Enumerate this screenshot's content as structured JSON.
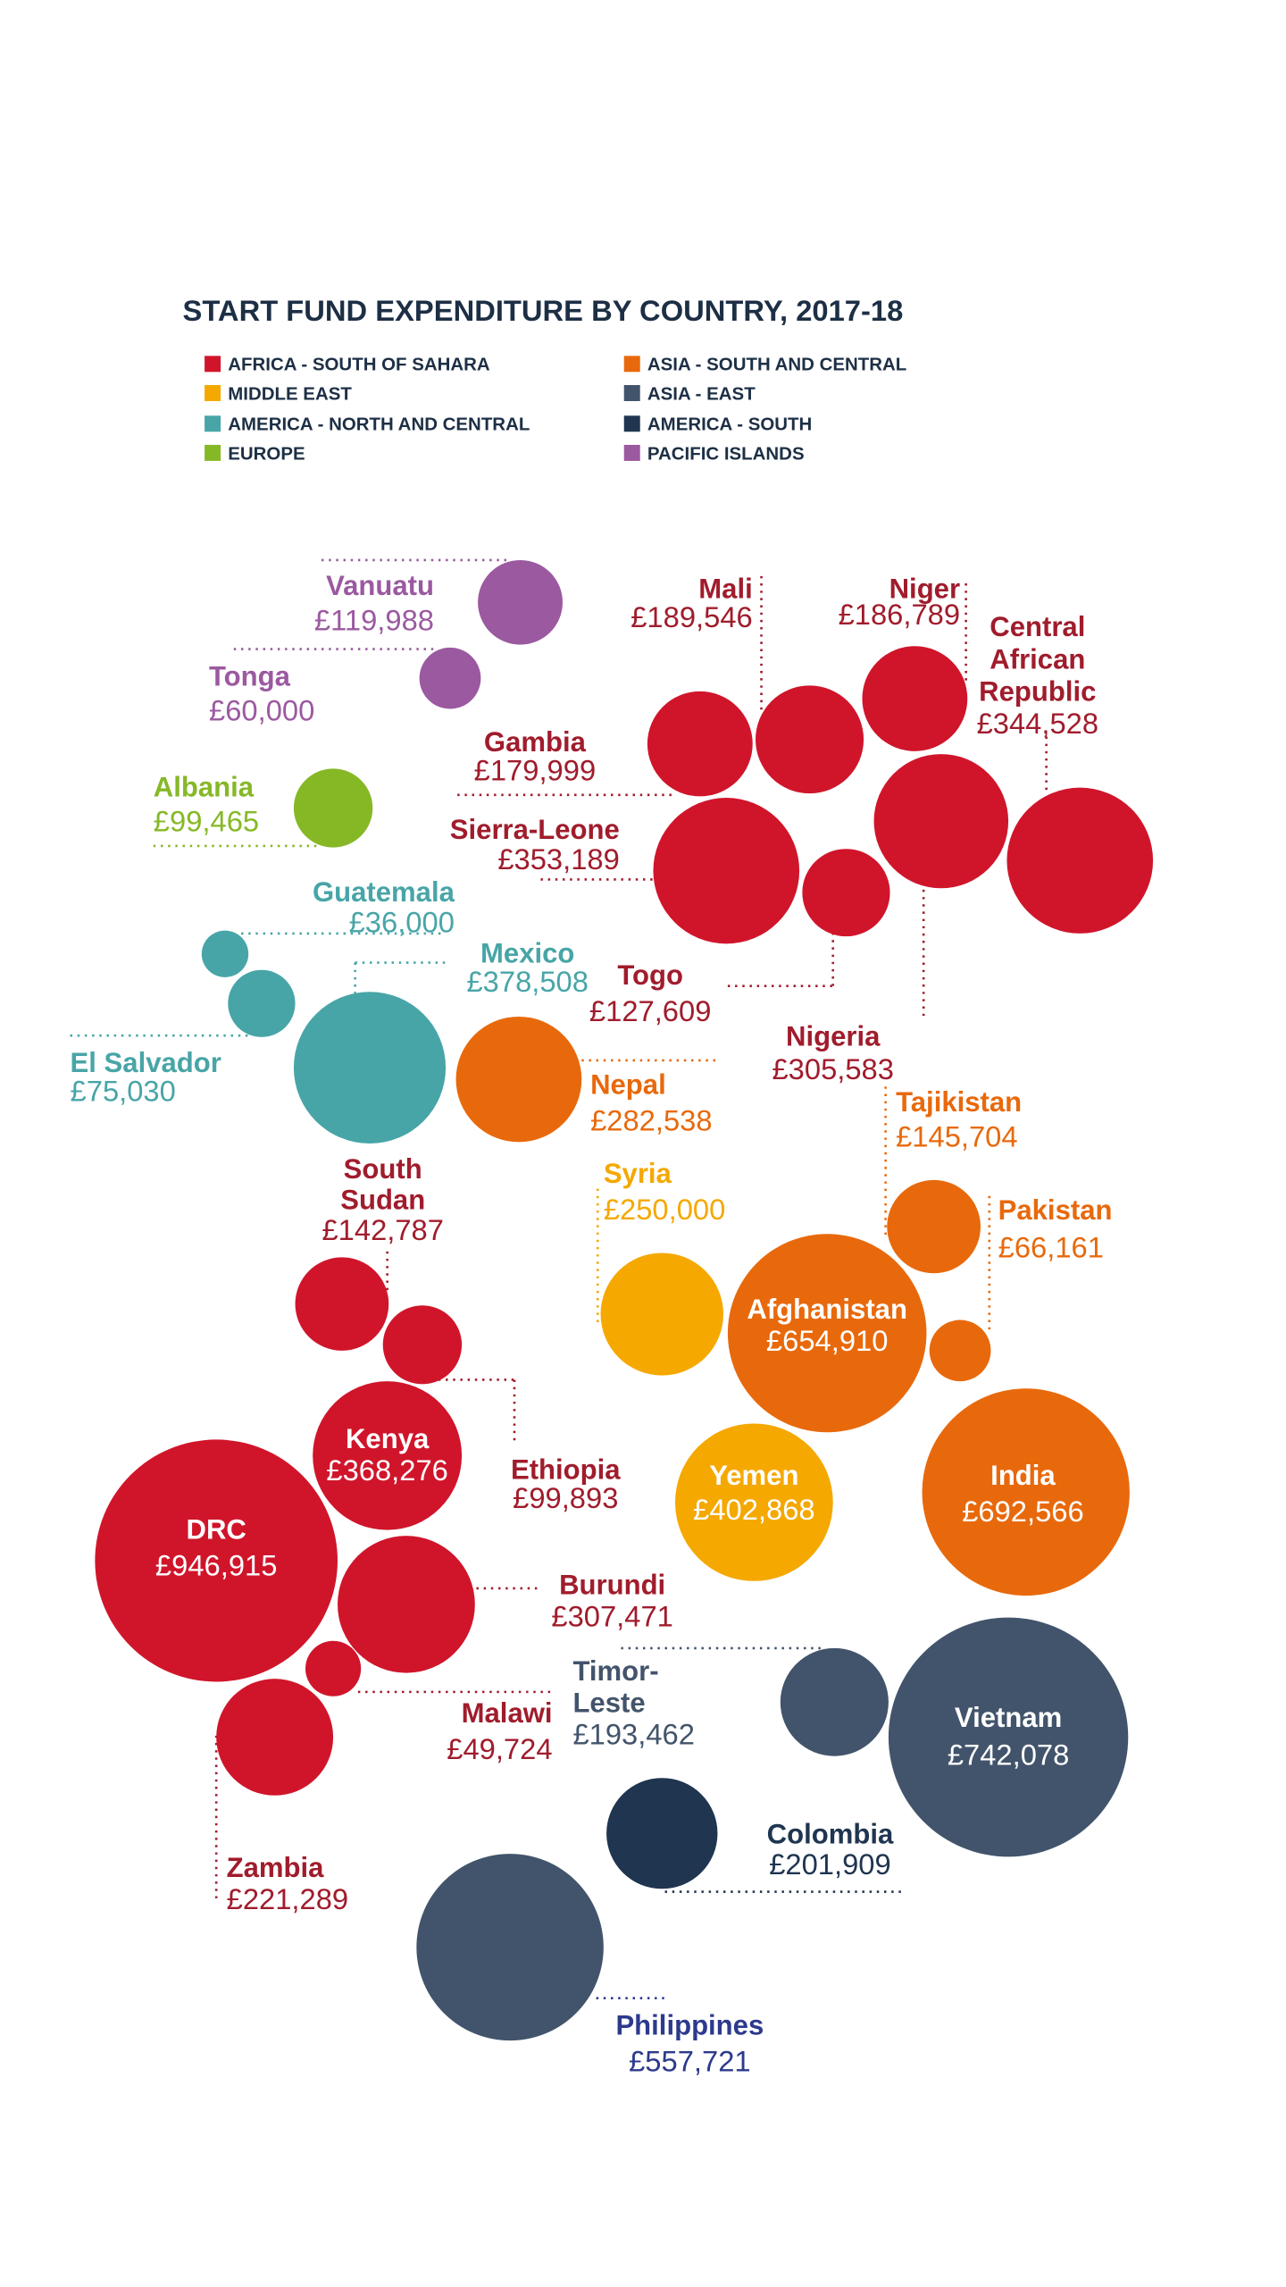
{
  "chart_data": {
    "type": "bubble",
    "title": "START FUND EXPENDITURE BY COUNTRY, 2017-18",
    "currency": "GBP",
    "legend": [
      {
        "label": "AFRICA - SOUTH OF SAHARA",
        "color": "#d0152b"
      },
      {
        "label": "MIDDLE EAST",
        "color": "#f5a800"
      },
      {
        "label": "AMERICA - NORTH AND CENTRAL",
        "color": "#48a5a7"
      },
      {
        "label": "EUROPE",
        "color": "#86b826"
      },
      {
        "label": "ASIA - SOUTH AND CENTRAL",
        "color": "#e8690c"
      },
      {
        "label": "ASIA - EAST",
        "color": "#42546b"
      },
      {
        "label": "AMERICA - SOUTH",
        "color": "#1f3550"
      },
      {
        "label": "PACIFIC ISLANDS",
        "color": "#9b59a0"
      }
    ],
    "points": [
      {
        "name": "Vanuatu",
        "name_lines": [
          "Vanuatu"
        ],
        "value": 119988,
        "value_label": "£119,988",
        "region": "PACIFIC ISLANDS"
      },
      {
        "name": "Tonga",
        "name_lines": [
          "Tonga"
        ],
        "value": 60000,
        "value_label": "£60,000",
        "region": "PACIFIC ISLANDS"
      },
      {
        "name": "Albania",
        "name_lines": [
          "Albania"
        ],
        "value": 99465,
        "value_label": "£99,465",
        "region": "EUROPE"
      },
      {
        "name": "Gambia",
        "name_lines": [
          "Gambia"
        ],
        "value": 179999,
        "value_label": "£179,999",
        "region": "AFRICA - SOUTH OF SAHARA"
      },
      {
        "name": "Mali",
        "name_lines": [
          "Mali"
        ],
        "value": 189546,
        "value_label": "£189,546",
        "region": "AFRICA - SOUTH OF SAHARA"
      },
      {
        "name": "Niger",
        "name_lines": [
          "Niger"
        ],
        "value": 186789,
        "value_label": "£186,789",
        "region": "AFRICA - SOUTH OF SAHARA"
      },
      {
        "name": "Central African Republic",
        "name_lines": [
          "Central",
          "African",
          "Republic"
        ],
        "value": 344528,
        "value_label": "£344,528",
        "region": "AFRICA - SOUTH OF SAHARA"
      },
      {
        "name": "Sierra-Leone",
        "name_lines": [
          "Sierra-Leone"
        ],
        "value": 353189,
        "value_label": "£353,189",
        "region": "AFRICA - SOUTH OF SAHARA"
      },
      {
        "name": "Togo",
        "name_lines": [
          "Togo"
        ],
        "value": 127609,
        "value_label": "£127,609",
        "region": "AFRICA - SOUTH OF SAHARA"
      },
      {
        "name": "Nigeria",
        "name_lines": [
          "Nigeria"
        ],
        "value": 305583,
        "value_label": "£305,583",
        "region": "AFRICA - SOUTH OF SAHARA"
      },
      {
        "name": "Guatemala",
        "name_lines": [
          "Guatemala"
        ],
        "value": 36000,
        "value_label": "£36,000",
        "region": "AMERICA - NORTH AND CENTRAL"
      },
      {
        "name": "El Salvador",
        "name_lines": [
          "El Salvador"
        ],
        "value": 75030,
        "value_label": "£75,030",
        "region": "AMERICA - NORTH AND CENTRAL"
      },
      {
        "name": "Mexico",
        "name_lines": [
          "Mexico"
        ],
        "value": 378508,
        "value_label": "£378,508",
        "region": "AMERICA - NORTH AND CENTRAL"
      },
      {
        "name": "Nepal",
        "name_lines": [
          "Nepal"
        ],
        "value": 282538,
        "value_label": "£282,538",
        "region": "ASIA - SOUTH AND CENTRAL"
      },
      {
        "name": "Tajikistan",
        "name_lines": [
          "Tajikistan"
        ],
        "value": 145704,
        "value_label": "£145,704",
        "region": "ASIA - SOUTH AND CENTRAL"
      },
      {
        "name": "Pakistan",
        "name_lines": [
          "Pakistan"
        ],
        "value": 66161,
        "value_label": "£66,161",
        "region": "ASIA - SOUTH AND CENTRAL"
      },
      {
        "name": "Afghanistan",
        "name_lines": [
          "Afghanistan"
        ],
        "value": 654910,
        "value_label": "£654,910",
        "region": "ASIA - SOUTH AND CENTRAL"
      },
      {
        "name": "Syria",
        "name_lines": [
          "Syria"
        ],
        "value": 250000,
        "value_label": "£250,000",
        "region": "MIDDLE EAST"
      },
      {
        "name": "Yemen",
        "name_lines": [
          "Yemen"
        ],
        "value": 402868,
        "value_label": "£402,868",
        "region": "MIDDLE EAST"
      },
      {
        "name": "India",
        "name_lines": [
          "India"
        ],
        "value": 692566,
        "value_label": "£692,566",
        "region": "ASIA - SOUTH AND CENTRAL"
      },
      {
        "name": "South Sudan",
        "name_lines": [
          "South",
          "Sudan"
        ],
        "value": 142787,
        "value_label": "£142,787",
        "region": "AFRICA - SOUTH OF SAHARA"
      },
      {
        "name": "Ethiopia",
        "name_lines": [
          "Ethiopia"
        ],
        "value": 99893,
        "value_label": "£99,893",
        "region": "AFRICA - SOUTH OF SAHARA"
      },
      {
        "name": "Kenya",
        "name_lines": [
          "Kenya"
        ],
        "value": 368276,
        "value_label": "£368,276",
        "region": "AFRICA - SOUTH OF SAHARA"
      },
      {
        "name": "DRC",
        "name_lines": [
          "DRC"
        ],
        "value": 946915,
        "value_label": "£946,915",
        "region": "AFRICA - SOUTH OF SAHARA"
      },
      {
        "name": "Burundi",
        "name_lines": [
          "Burundi"
        ],
        "value": 307471,
        "value_label": "£307,471",
        "region": "AFRICA - SOUTH OF SAHARA"
      },
      {
        "name": "Malawi",
        "name_lines": [
          "Malawi"
        ],
        "value": 49724,
        "value_label": "£49,724",
        "region": "AFRICA - SOUTH OF SAHARA"
      },
      {
        "name": "Zambia",
        "name_lines": [
          "Zambia"
        ],
        "value": 221289,
        "value_label": "£221,289",
        "region": "AFRICA - SOUTH OF SAHARA"
      },
      {
        "name": "Timor-Leste",
        "name_lines": [
          "Timor-",
          "Leste"
        ],
        "value": 193462,
        "value_label": "£193,462",
        "region": "ASIA - EAST"
      },
      {
        "name": "Vietnam",
        "name_lines": [
          "Vietnam"
        ],
        "value": 742078,
        "value_label": "£742,078",
        "region": "ASIA - EAST"
      },
      {
        "name": "Colombia",
        "name_lines": [
          "Colombia"
        ],
        "value": 201909,
        "value_label": "£201,909",
        "region": "AMERICA - SOUTH"
      },
      {
        "name": "Philippines",
        "name_lines": [
          "Philippines"
        ],
        "value": 557721,
        "value_label": "£557,721",
        "region": "ASIA - EAST"
      }
    ]
  }
}
